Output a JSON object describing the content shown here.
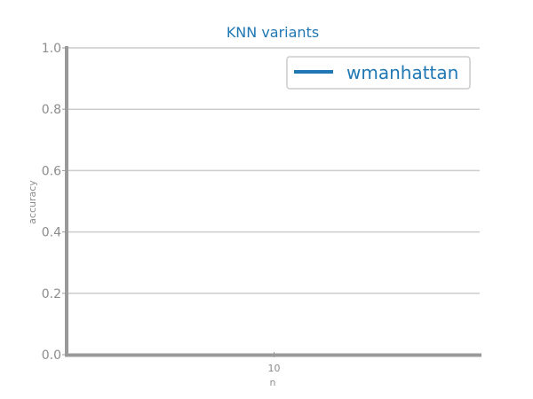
{
  "colors": {
    "accent": "#1f77b4",
    "axis": "#999999",
    "grid": "#cccccc",
    "text_muted": "#8c8c8c",
    "legend_border": "#cccccc"
  },
  "chart_data": {
    "type": "line",
    "title": "KNN variants",
    "xlabel": "n",
    "ylabel": "accuracy",
    "x_ticks": [
      "10"
    ],
    "y_ticks": [
      "0.0",
      "0.2",
      "0.4",
      "0.6",
      "0.8",
      "1.0"
    ],
    "ylim": [
      0,
      1
    ],
    "grid": true,
    "legend_position": "top-right",
    "series": [
      {
        "name": "wmanhattan",
        "color": "#1f77b4",
        "x": [],
        "y": []
      }
    ]
  }
}
